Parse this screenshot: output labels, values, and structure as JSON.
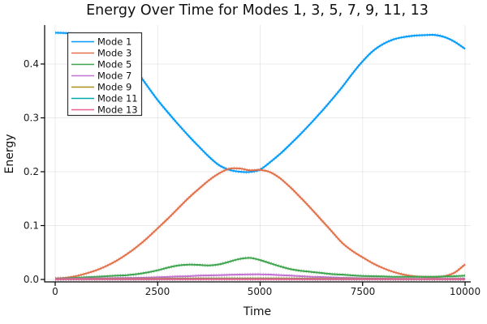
{
  "title": "Energy Over Time for Modes 1, 3, 5, 7, 9, 11, 13",
  "chart_data": {
    "type": "line",
    "title": "Energy Over Time for Modes 1, 3, 5, 7, 9, 11, 13",
    "xlabel": "Time",
    "ylabel": "Energy",
    "xlim": [
      0,
      10000
    ],
    "ylim": [
      0,
      0.46
    ],
    "grid": true,
    "legend_position": "top-left",
    "xticks": [
      0,
      2500,
      5000,
      7500,
      10000
    ],
    "xtick_labels": [
      "0",
      "2500",
      "5000",
      "7500",
      "10000"
    ],
    "yticks": [
      0,
      0.1,
      0.2,
      0.3,
      0.4
    ],
    "ytick_labels": [
      "0.0",
      "0.1",
      "0.2",
      "0.3",
      "0.4"
    ],
    "x": [
      0,
      250,
      500,
      750,
      1000,
      1250,
      1500,
      1750,
      2000,
      2250,
      2500,
      2750,
      3000,
      3250,
      3500,
      3750,
      4000,
      4250,
      4500,
      4750,
      5000,
      5250,
      5500,
      5750,
      6000,
      6250,
      6500,
      6750,
      7000,
      7250,
      7500,
      7750,
      8000,
      8250,
      8500,
      8750,
      9000,
      9250,
      9500,
      9750,
      10000
    ],
    "series": [
      {
        "name": "Mode 1",
        "color": "#009AF9",
        "values": [
          0.458,
          0.4575,
          0.455,
          0.45,
          0.443,
          0.433,
          0.42,
          0.404,
          0.385,
          0.359,
          0.333,
          0.31,
          0.288,
          0.267,
          0.247,
          0.228,
          0.212,
          0.2035,
          0.2,
          0.1995,
          0.204,
          0.218,
          0.234,
          0.252,
          0.271,
          0.291,
          0.312,
          0.334,
          0.357,
          0.382,
          0.405,
          0.424,
          0.437,
          0.4455,
          0.45,
          0.4525,
          0.4535,
          0.454,
          0.45,
          0.441,
          0.428
        ]
      },
      {
        "name": "Mode 3",
        "color": "#E26F47",
        "values": [
          0.002,
          0.003,
          0.006,
          0.011,
          0.017,
          0.025,
          0.035,
          0.047,
          0.061,
          0.077,
          0.095,
          0.113,
          0.132,
          0.151,
          0.168,
          0.184,
          0.197,
          0.2055,
          0.206,
          0.2025,
          0.2035,
          0.199,
          0.187,
          0.17,
          0.151,
          0.131,
          0.11,
          0.089,
          0.068,
          0.053,
          0.041,
          0.03,
          0.021,
          0.014,
          0.009,
          0.006,
          0.0045,
          0.004,
          0.006,
          0.013,
          0.028
        ]
      },
      {
        "name": "Mode 5",
        "color": "#3DA44E",
        "values": [
          0.001,
          0.002,
          0.003,
          0.004,
          0.005,
          0.006,
          0.007,
          0.008,
          0.01,
          0.013,
          0.017,
          0.022,
          0.026,
          0.0275,
          0.027,
          0.026,
          0.028,
          0.033,
          0.038,
          0.04,
          0.036,
          0.03,
          0.024,
          0.019,
          0.016,
          0.014,
          0.012,
          0.01,
          0.009,
          0.0075,
          0.0065,
          0.006,
          0.0055,
          0.005,
          0.005,
          0.005,
          0.005,
          0.005,
          0.0055,
          0.006,
          0.007
        ]
      },
      {
        "name": "Mode 7",
        "color": "#C371D2",
        "values": [
          0.001,
          0.0012,
          0.0015,
          0.0018,
          0.002,
          0.0022,
          0.0025,
          0.0028,
          0.003,
          0.0035,
          0.004,
          0.0047,
          0.0055,
          0.006,
          0.007,
          0.0075,
          0.008,
          0.0085,
          0.009,
          0.0093,
          0.0095,
          0.009,
          0.008,
          0.007,
          0.006,
          0.005,
          0.0045,
          0.0038,
          0.003,
          0.0025,
          0.002,
          0.0018,
          0.0015,
          0.0013,
          0.0012,
          0.001,
          0.001,
          0.001,
          0.0012,
          0.0013,
          0.0015
        ]
      },
      {
        "name": "Mode 9",
        "color": "#AC8E18",
        "values": [
          0.0008,
          0.0008,
          0.0009,
          0.0009,
          0.001,
          0.001,
          0.0011,
          0.0012,
          0.0012,
          0.0013,
          0.0014,
          0.0015,
          0.0016,
          0.0017,
          0.0018,
          0.0019,
          0.002,
          0.002,
          0.002,
          0.002,
          0.002,
          0.0019,
          0.0018,
          0.0017,
          0.0016,
          0.0015,
          0.0014,
          0.0013,
          0.0012,
          0.0011,
          0.001,
          0.001,
          0.0009,
          0.0009,
          0.0008,
          0.0008,
          0.0008,
          0.0008,
          0.0008,
          0.0008,
          0.0008
        ]
      },
      {
        "name": "Mode 11",
        "color": "#00AAAE",
        "values": [
          0.0005,
          0.0005,
          0.0005,
          0.0005,
          0.0005,
          0.0005,
          0.0005,
          0.0005,
          0.0005,
          0.0005,
          0.0005,
          0.0005,
          0.0006,
          0.0006,
          0.0006,
          0.0007,
          0.0007,
          0.0007,
          0.0007,
          0.0007,
          0.0007,
          0.0007,
          0.0006,
          0.0006,
          0.0006,
          0.0005,
          0.0005,
          0.0005,
          0.0005,
          0.0005,
          0.0005,
          0.0005,
          0.0005,
          0.0005,
          0.0005,
          0.0005,
          0.0005,
          0.0005,
          0.0005,
          0.0005,
          0.0005
        ]
      },
      {
        "name": "Mode 13",
        "color": "#ED5E93",
        "values": [
          0.0003,
          0.0003,
          0.0003,
          0.0003,
          0.0003,
          0.0003,
          0.0003,
          0.0003,
          0.0003,
          0.0003,
          0.0003,
          0.0003,
          0.0003,
          0.0003,
          0.0003,
          0.0003,
          0.0003,
          0.0003,
          0.0003,
          0.0003,
          0.0003,
          0.0003,
          0.0003,
          0.0003,
          0.0003,
          0.0003,
          0.0003,
          0.0003,
          0.0003,
          0.0003,
          0.0003,
          0.0003,
          0.0003,
          0.0003,
          0.0003,
          0.0003,
          0.0003,
          0.0003,
          0.0003,
          0.0003,
          0.0003
        ]
      }
    ]
  },
  "colors": {
    "background": "#ffffff",
    "axis": "#000000",
    "grid": "rgba(0,0,0,0.08)",
    "text": "#1a1a1a",
    "legend_border": "#333333",
    "legend_background": "#ffffff"
  }
}
